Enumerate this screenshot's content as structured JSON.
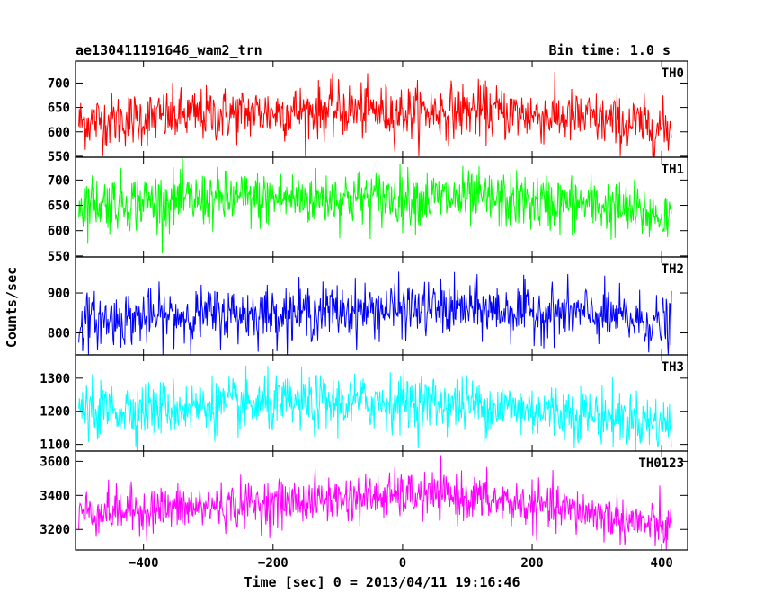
{
  "chart_data": {
    "type": "line",
    "title": "ae130411191646_wam2_trn",
    "subtitle": "Bin time: 1.0 s",
    "xlabel": "Time [sec] 0 = 2013/04/11 19:16:46",
    "ylabel": "Counts/sec",
    "xlim": [
      -505,
      440
    ],
    "x_data_range": [
      -500,
      415
    ],
    "x_step": 1.0,
    "xticks": [
      -400,
      -200,
      0,
      200,
      400
    ],
    "xticklabels": [
      "−400",
      "−200",
      "0",
      "200",
      "400"
    ],
    "panels": [
      {
        "name": "TH0",
        "color": "#ff0000",
        "ylim": [
          548,
          745
        ],
        "yticks": [
          550,
          600,
          650,
          700
        ],
        "trend": [
          [
            -500,
            620
          ],
          [
            -300,
            635
          ],
          [
            -100,
            645
          ],
          [
            0,
            640
          ],
          [
            100,
            645
          ],
          [
            300,
            625
          ],
          [
            415,
            605
          ]
        ],
        "noise": 28,
        "data_range": [
          550,
          745
        ]
      },
      {
        "name": "TH1",
        "color": "#00ff00",
        "ylim": [
          548,
          745
        ],
        "yticks": [
          550,
          600,
          650,
          700
        ],
        "trend": [
          [
            -500,
            655
          ],
          [
            -300,
            660
          ],
          [
            -100,
            665
          ],
          [
            0,
            665
          ],
          [
            100,
            662
          ],
          [
            300,
            650
          ],
          [
            415,
            625
          ]
        ],
        "noise": 28,
        "data_range": [
          555,
          750
        ]
      },
      {
        "name": "TH2",
        "color": "#0000ff",
        "ylim": [
          745,
          990
        ],
        "yticks": [
          800,
          900
        ],
        "trend": [
          [
            -500,
            830
          ],
          [
            -300,
            845
          ],
          [
            -100,
            855
          ],
          [
            0,
            860
          ],
          [
            100,
            860
          ],
          [
            300,
            845
          ],
          [
            415,
            820
          ]
        ],
        "noise": 34,
        "data_range": [
          745,
          990
        ]
      },
      {
        "name": "TH3",
        "color": "#00ffff",
        "ylim": [
          1080,
          1370
        ],
        "yticks": [
          1100,
          1200,
          1300
        ],
        "trend": [
          [
            -500,
            1200
          ],
          [
            -300,
            1215
          ],
          [
            -100,
            1225
          ],
          [
            0,
            1230
          ],
          [
            100,
            1220
          ],
          [
            300,
            1190
          ],
          [
            415,
            1160
          ]
        ],
        "noise": 42,
        "data_range": [
          1080,
          1370
        ]
      },
      {
        "name": "TH0123",
        "color": "#ff00ff",
        "ylim": [
          3080,
          3660
        ],
        "yticks": [
          3200,
          3400,
          3600
        ],
        "trend": [
          [
            -500,
            3300
          ],
          [
            -300,
            3330
          ],
          [
            -100,
            3380
          ],
          [
            0,
            3400
          ],
          [
            100,
            3390
          ],
          [
            300,
            3290
          ],
          [
            415,
            3200
          ]
        ],
        "noise": 68,
        "data_range": [
          3080,
          3660
        ]
      }
    ],
    "legend": "panel labels at top-right of each panel",
    "grid": false
  }
}
